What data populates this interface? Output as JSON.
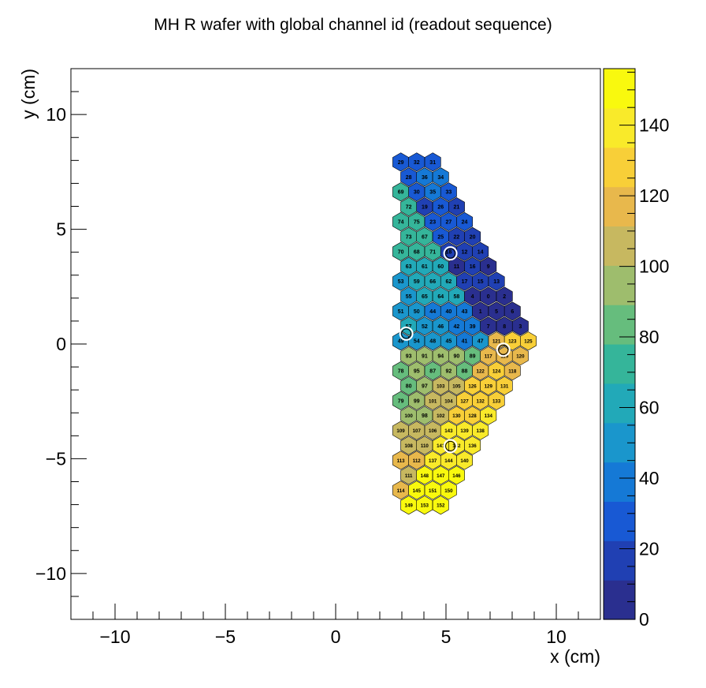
{
  "chart_data": {
    "type": "heatmap",
    "title": "MH R wafer with global channel id (readout sequence)",
    "xlabel": "x (cm)",
    "ylabel": "y (cm)",
    "xlim": [
      -12,
      12
    ],
    "ylim": [
      -12,
      12
    ],
    "x_ticks": [
      -10,
      -5,
      0,
      5,
      10
    ],
    "y_ticks": [
      -10,
      -5,
      0,
      5,
      10
    ],
    "x_tick_labels": [
      "−10",
      "−5",
      "0",
      "5",
      "10"
    ],
    "y_tick_labels": [
      "−10",
      "−5",
      "0",
      "5",
      "10"
    ],
    "colorbar": {
      "zlim": [
        0,
        156
      ],
      "ticks": [
        0,
        20,
        40,
        60,
        80,
        100,
        120,
        140
      ],
      "tick_labels": [
        "0",
        "20",
        "40",
        "60",
        "80",
        "100",
        "120",
        "140"
      ],
      "palette": [
        "#2a2f8f",
        "#2040b3",
        "#1859d4",
        "#1579d6",
        "#1a96cc",
        "#22a9b8",
        "#35b59a",
        "#66bd7d",
        "#9ebd6d",
        "#c7b860",
        "#e8b84c",
        "#f8cf38",
        "#f9ea2a",
        "#f9f90e"
      ]
    },
    "cells": [
      {
        "x": 2.95,
        "y": 7.93,
        "id": 29
      },
      {
        "x": 3.67,
        "y": 7.93,
        "id": 32
      },
      {
        "x": 4.4,
        "y": 7.93,
        "id": 31
      },
      {
        "x": 3.31,
        "y": 7.28,
        "id": 28
      },
      {
        "x": 4.03,
        "y": 7.28,
        "id": 36
      },
      {
        "x": 4.76,
        "y": 7.28,
        "id": 34
      },
      {
        "x": 2.95,
        "y": 6.63,
        "id": 69
      },
      {
        "x": 3.67,
        "y": 6.63,
        "id": 30
      },
      {
        "x": 4.4,
        "y": 6.63,
        "id": 35
      },
      {
        "x": 5.12,
        "y": 6.63,
        "id": 33
      },
      {
        "x": 3.31,
        "y": 5.98,
        "id": 72
      },
      {
        "x": 4.03,
        "y": 5.98,
        "id": 19
      },
      {
        "x": 4.76,
        "y": 5.98,
        "id": 26
      },
      {
        "x": 5.48,
        "y": 5.98,
        "id": 21
      },
      {
        "x": 2.95,
        "y": 5.33,
        "id": 74
      },
      {
        "x": 3.67,
        "y": 5.33,
        "id": 75
      },
      {
        "x": 4.4,
        "y": 5.33,
        "id": 23
      },
      {
        "x": 5.12,
        "y": 5.33,
        "id": 27
      },
      {
        "x": 5.84,
        "y": 5.33,
        "id": 24
      },
      {
        "x": 3.31,
        "y": 4.68,
        "id": 73
      },
      {
        "x": 4.03,
        "y": 4.68,
        "id": 67
      },
      {
        "x": 4.76,
        "y": 4.68,
        "id": 25
      },
      {
        "x": 5.48,
        "y": 4.68,
        "id": 22
      },
      {
        "x": 6.2,
        "y": 4.68,
        "id": 20
      },
      {
        "x": 2.95,
        "y": 4.03,
        "id": 70
      },
      {
        "x": 3.67,
        "y": 4.03,
        "id": 68
      },
      {
        "x": 4.4,
        "y": 4.03,
        "id": 71
      },
      {
        "x": 5.12,
        "y": 4.03,
        "id": 18
      },
      {
        "x": 5.84,
        "y": 4.03,
        "id": 12
      },
      {
        "x": 6.56,
        "y": 4.03,
        "id": 14
      },
      {
        "x": 3.31,
        "y": 3.38,
        "id": 63
      },
      {
        "x": 4.03,
        "y": 3.38,
        "id": 61
      },
      {
        "x": 4.76,
        "y": 3.38,
        "id": 60
      },
      {
        "x": 5.48,
        "y": 3.38,
        "id": 11
      },
      {
        "x": 6.2,
        "y": 3.38,
        "id": 16
      },
      {
        "x": 6.92,
        "y": 3.38,
        "id": 9
      },
      {
        "x": 2.95,
        "y": 2.73,
        "id": 53
      },
      {
        "x": 3.67,
        "y": 2.73,
        "id": 59
      },
      {
        "x": 4.4,
        "y": 2.73,
        "id": 66
      },
      {
        "x": 5.12,
        "y": 2.73,
        "id": 62
      },
      {
        "x": 5.84,
        "y": 2.73,
        "id": 17
      },
      {
        "x": 6.56,
        "y": 2.73,
        "id": 15
      },
      {
        "x": 7.29,
        "y": 2.73,
        "id": 13
      },
      {
        "x": 3.31,
        "y": 2.08,
        "id": 55
      },
      {
        "x": 4.03,
        "y": 2.08,
        "id": 65
      },
      {
        "x": 4.76,
        "y": 2.08,
        "id": 64
      },
      {
        "x": 5.48,
        "y": 2.08,
        "id": 58
      },
      {
        "x": 6.2,
        "y": 2.08,
        "id": 4
      },
      {
        "x": 6.92,
        "y": 2.08,
        "id": 0
      },
      {
        "x": 7.65,
        "y": 2.08,
        "id": 2
      },
      {
        "x": 2.95,
        "y": 1.43,
        "id": 51
      },
      {
        "x": 3.67,
        "y": 1.43,
        "id": 50
      },
      {
        "x": 4.4,
        "y": 1.43,
        "id": 44
      },
      {
        "x": 5.12,
        "y": 1.43,
        "id": 40
      },
      {
        "x": 5.84,
        "y": 1.43,
        "id": 43
      },
      {
        "x": 6.56,
        "y": 1.43,
        "id": 1
      },
      {
        "x": 7.29,
        "y": 1.43,
        "id": 5
      },
      {
        "x": 8.01,
        "y": 1.43,
        "id": 6
      },
      {
        "x": 3.31,
        "y": 0.78,
        "id": 57
      },
      {
        "x": 4.03,
        "y": 0.78,
        "id": 52
      },
      {
        "x": 4.76,
        "y": 0.78,
        "id": 46
      },
      {
        "x": 5.48,
        "y": 0.78,
        "id": 42
      },
      {
        "x": 6.2,
        "y": 0.78,
        "id": 39
      },
      {
        "x": 6.92,
        "y": 0.78,
        "id": 7
      },
      {
        "x": 7.65,
        "y": 0.78,
        "id": 8
      },
      {
        "x": 8.37,
        "y": 0.78,
        "id": 3
      },
      {
        "x": 2.95,
        "y": 0.13,
        "id": 49
      },
      {
        "x": 3.67,
        "y": 0.13,
        "id": 54
      },
      {
        "x": 4.4,
        "y": 0.13,
        "id": 48
      },
      {
        "x": 5.12,
        "y": 0.13,
        "id": 45
      },
      {
        "x": 5.84,
        "y": 0.13,
        "id": 41
      },
      {
        "x": 6.56,
        "y": 0.13,
        "id": 47
      },
      {
        "x": 7.29,
        "y": 0.13,
        "id": 121
      },
      {
        "x": 8.01,
        "y": 0.13,
        "id": 123
      },
      {
        "x": 8.73,
        "y": 0.13,
        "id": 125
      },
      {
        "x": 3.31,
        "y": -0.52,
        "id": 93
      },
      {
        "x": 4.03,
        "y": -0.52,
        "id": 91
      },
      {
        "x": 4.76,
        "y": -0.52,
        "id": 94
      },
      {
        "x": 5.48,
        "y": -0.52,
        "id": 90
      },
      {
        "x": 6.2,
        "y": -0.52,
        "id": 89
      },
      {
        "x": 6.92,
        "y": -0.52,
        "id": 117
      },
      {
        "x": 7.65,
        "y": -0.52,
        "id": 119
      },
      {
        "x": 8.37,
        "y": -0.52,
        "id": 120
      },
      {
        "x": 2.95,
        "y": -1.17,
        "id": 78
      },
      {
        "x": 3.67,
        "y": -1.17,
        "id": 95
      },
      {
        "x": 4.4,
        "y": -1.17,
        "id": 87
      },
      {
        "x": 5.12,
        "y": -1.17,
        "id": 92
      },
      {
        "x": 5.84,
        "y": -1.17,
        "id": 88
      },
      {
        "x": 6.56,
        "y": -1.17,
        "id": 122
      },
      {
        "x": 7.29,
        "y": -1.17,
        "id": 124
      },
      {
        "x": 8.01,
        "y": -1.17,
        "id": 118
      },
      {
        "x": 3.31,
        "y": -1.82,
        "id": 80
      },
      {
        "x": 4.03,
        "y": -1.82,
        "id": 97
      },
      {
        "x": 4.76,
        "y": -1.82,
        "id": 103
      },
      {
        "x": 5.48,
        "y": -1.82,
        "id": 105
      },
      {
        "x": 6.2,
        "y": -1.82,
        "id": 126
      },
      {
        "x": 6.92,
        "y": -1.82,
        "id": 129
      },
      {
        "x": 7.65,
        "y": -1.82,
        "id": 131
      },
      {
        "x": 2.95,
        "y": -2.47,
        "id": 79
      },
      {
        "x": 3.67,
        "y": -2.47,
        "id": 99
      },
      {
        "x": 4.4,
        "y": -2.47,
        "id": 101
      },
      {
        "x": 5.12,
        "y": -2.47,
        "id": 104
      },
      {
        "x": 5.84,
        "y": -2.47,
        "id": 127
      },
      {
        "x": 6.56,
        "y": -2.47,
        "id": 132
      },
      {
        "x": 7.29,
        "y": -2.47,
        "id": 133
      },
      {
        "x": 3.31,
        "y": -3.12,
        "id": 100
      },
      {
        "x": 4.03,
        "y": -3.12,
        "id": 98
      },
      {
        "x": 4.76,
        "y": -3.12,
        "id": 102
      },
      {
        "x": 5.48,
        "y": -3.12,
        "id": 130
      },
      {
        "x": 6.2,
        "y": -3.12,
        "id": 128
      },
      {
        "x": 6.92,
        "y": -3.12,
        "id": 134
      },
      {
        "x": 2.95,
        "y": -3.77,
        "id": 109
      },
      {
        "x": 3.67,
        "y": -3.77,
        "id": 107
      },
      {
        "x": 4.4,
        "y": -3.77,
        "id": 106
      },
      {
        "x": 5.12,
        "y": -3.77,
        "id": 143
      },
      {
        "x": 5.84,
        "y": -3.77,
        "id": 139
      },
      {
        "x": 6.56,
        "y": -3.77,
        "id": 138
      },
      {
        "x": 3.31,
        "y": -4.42,
        "id": 108
      },
      {
        "x": 4.03,
        "y": -4.42,
        "id": 110
      },
      {
        "x": 4.76,
        "y": -4.42,
        "id": 141
      },
      {
        "x": 5.48,
        "y": -4.42,
        "id": 142
      },
      {
        "x": 6.2,
        "y": -4.42,
        "id": 136
      },
      {
        "x": 2.95,
        "y": -5.07,
        "id": 113
      },
      {
        "x": 3.67,
        "y": -5.07,
        "id": 112
      },
      {
        "x": 4.4,
        "y": -5.07,
        "id": 137
      },
      {
        "x": 5.12,
        "y": -5.07,
        "id": 144
      },
      {
        "x": 5.84,
        "y": -5.07,
        "id": 140
      },
      {
        "x": 3.31,
        "y": -5.72,
        "id": 111
      },
      {
        "x": 4.03,
        "y": -5.72,
        "id": 148
      },
      {
        "x": 4.76,
        "y": -5.72,
        "id": 147
      },
      {
        "x": 5.48,
        "y": -5.72,
        "id": 146
      },
      {
        "x": 2.95,
        "y": -6.37,
        "id": 114
      },
      {
        "x": 3.67,
        "y": -6.37,
        "id": 145
      },
      {
        "x": 4.4,
        "y": -6.37,
        "id": 151
      },
      {
        "x": 5.12,
        "y": -6.37,
        "id": 150
      },
      {
        "x": 3.31,
        "y": -7.02,
        "id": 149
      },
      {
        "x": 4.03,
        "y": -7.02,
        "id": 153
      },
      {
        "x": 4.76,
        "y": -7.02,
        "id": 152
      }
    ],
    "calibration_markers": [
      {
        "x": 5.2,
        "y": 3.95
      },
      {
        "x": 3.2,
        "y": 0.45
      },
      {
        "x": 7.6,
        "y": -0.25
      },
      {
        "x": 5.2,
        "y": -4.45
      }
    ]
  }
}
